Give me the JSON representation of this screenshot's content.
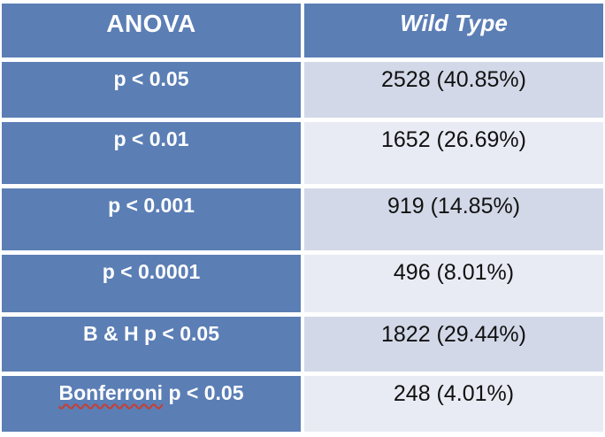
{
  "table": {
    "header": {
      "col1": "ANOVA",
      "col2": "Wild Type"
    },
    "rows": [
      {
        "label": "p < 0.05",
        "value": "2528 (40.85%)"
      },
      {
        "label": "p < 0.01",
        "value": "1652 (26.69%)"
      },
      {
        "label": "p < 0.001",
        "value": "919 (14.85%)"
      },
      {
        "label": "p < 0.0001",
        "value": "496 (8.01%)"
      },
      {
        "label": "B & H p < 0.05",
        "value": "1822 (29.44%)"
      },
      {
        "label_misspelled_word": "Bonferroni",
        "label_rest": "p < 0.05",
        "value": "248 (4.01%)"
      }
    ]
  },
  "colors": {
    "header_blue": "#5b7eb5",
    "band_dark": "#d2d8e7",
    "band_light": "#e9ebf4",
    "cell_gap_white": "#ffffff",
    "value_text": "#111111",
    "label_text": "#ffffff",
    "spellcheck_underline_red": "#c63f33"
  },
  "chart_data": {
    "type": "table",
    "title": "ANOVA significance counts for Wild Type",
    "columns": [
      "ANOVA",
      "Wild Type"
    ],
    "rows": [
      [
        "p < 0.05",
        "2528 (40.85%)"
      ],
      [
        "p < 0.01",
        "1652 (26.69%)"
      ],
      [
        "p < 0.001",
        "919 (14.85%)"
      ],
      [
        "p < 0.0001",
        "496 (8.01%)"
      ],
      [
        "B & H p < 0.05",
        "1822 (29.44%)"
      ],
      [
        "Bonferroni p < 0.05",
        "248 (4.01%)"
      ]
    ],
    "counts": [
      2528,
      1652,
      919,
      496,
      1822,
      248
    ],
    "percents": [
      40.85,
      26.69,
      14.85,
      8.01,
      29.44,
      4.01
    ]
  }
}
